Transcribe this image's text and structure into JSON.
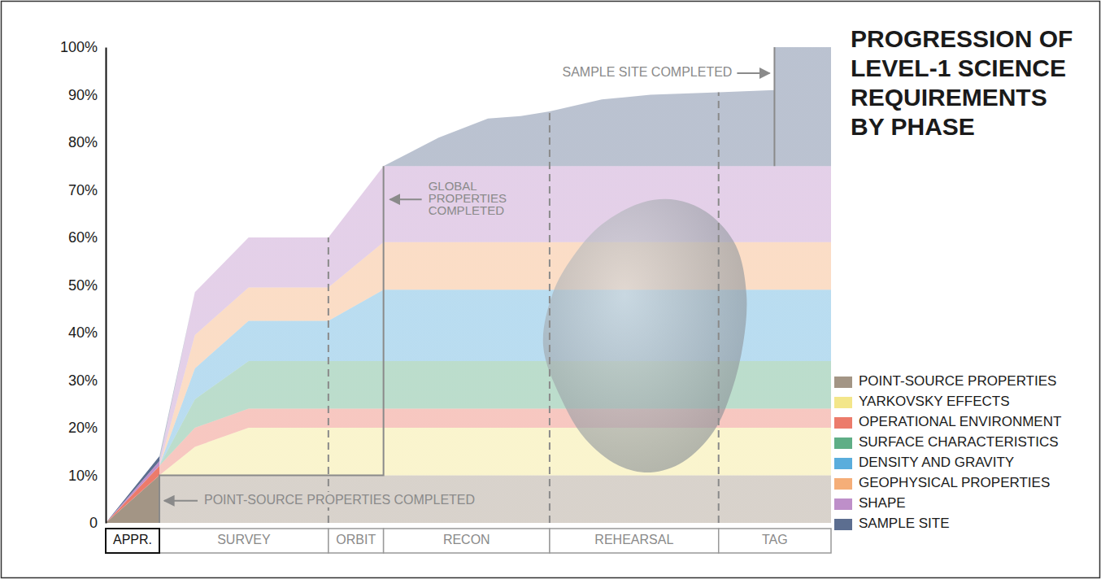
{
  "chart_data": {
    "type": "area",
    "title": "PROGRESSION OF\nLEVEL-1 SCIENCE\nREQUIREMENTS\nBY PHASE",
    "stacked": true,
    "grid": false,
    "legend": "right",
    "xlim": [
      0,
      100
    ],
    "ylim": [
      0,
      100
    ],
    "yticks": [
      0,
      {
        "value": 10,
        "label": "10%"
      },
      {
        "value": 20,
        "label": "20%"
      },
      {
        "value": 30,
        "label": "30%"
      },
      {
        "value": 40,
        "label": "40%"
      },
      {
        "value": 50,
        "label": "50%"
      },
      {
        "value": 60,
        "label": "60%"
      },
      {
        "value": 70,
        "label": "70%"
      },
      {
        "value": 80,
        "label": "80%"
      },
      {
        "value": 90,
        "label": "90%"
      },
      {
        "value": 100,
        "label": "100%"
      }
    ],
    "phases": [
      {
        "name": "APPR.",
        "start": 0,
        "end": 7.4
      },
      {
        "name": "SURVEY",
        "start": 7.4,
        "end": 30.7
      },
      {
        "name": "ORBIT",
        "start": 30.7,
        "end": 38.3
      },
      {
        "name": "RECON",
        "start": 38.3,
        "end": 61.2
      },
      {
        "name": "REHEARSAL",
        "start": 61.2,
        "end": 84.5
      },
      {
        "name": "TAG",
        "start": 84.5,
        "end": 100
      }
    ],
    "x": [
      0,
      7.4,
      12.3,
      19.7,
      30.7,
      38.3,
      45.9,
      52.7,
      57.2,
      61.2,
      68.4,
      75.1,
      84.5,
      92.2,
      92.2,
      100
    ],
    "series": [
      {
        "name": "POINT-SOURCE PROPERTIES",
        "color": "#a39585",
        "values": [
          0,
          10,
          10,
          10,
          10,
          10,
          10,
          10,
          10,
          10,
          10,
          10,
          10,
          10,
          10,
          10
        ]
      },
      {
        "name": "YARKOVSKY EFFECTS",
        "color": "#f3e68a",
        "values": [
          0,
          0,
          6,
          10,
          10,
          10,
          10,
          10,
          10,
          10,
          10,
          10,
          10,
          10,
          10,
          10
        ]
      },
      {
        "name": "OPERATIONAL ENVIRONMENT",
        "color": "#ec7b6b",
        "values": [
          0,
          2,
          4,
          4,
          4,
          4,
          4,
          4,
          4,
          4,
          4,
          4,
          4,
          4,
          4,
          4
        ]
      },
      {
        "name": "SURFACE CHARACTERISTICS",
        "color": "#5fae86",
        "values": [
          0,
          0,
          6,
          10,
          10,
          10,
          10,
          10,
          10,
          10,
          10,
          10,
          10,
          10,
          10,
          10
        ]
      },
      {
        "name": "DENSITY AND GRAVITY",
        "color": "#5aaddc",
        "values": [
          0,
          0,
          6.5,
          8.5,
          8.5,
          15,
          15,
          15,
          15,
          15,
          15,
          15,
          15,
          15,
          15,
          15
        ]
      },
      {
        "name": "GEOPHYSICAL PROPERTIES",
        "color": "#f5ae78",
        "values": [
          0,
          0,
          7,
          7,
          7,
          10,
          10,
          10,
          10,
          10,
          10,
          10,
          10,
          10,
          10,
          10
        ]
      },
      {
        "name": "SHAPE",
        "color": "#be8fc9",
        "values": [
          0,
          1,
          9,
          10.5,
          10.5,
          16,
          16,
          16,
          16,
          16,
          16,
          16,
          16,
          16,
          16,
          16
        ]
      },
      {
        "name": "SAMPLE SITE",
        "color": "#5c6e90",
        "values": [
          0,
          1,
          0,
          0,
          0,
          0,
          6,
          10,
          10.5,
          11.5,
          14,
          15,
          15.5,
          16,
          25,
          25
        ]
      }
    ],
    "annotations": [
      "POINT-SOURCE PROPERTIES COMPLETED",
      "GLOBAL PROPERTIES COMPLETED",
      "SAMPLE SITE COMPLETED"
    ]
  }
}
